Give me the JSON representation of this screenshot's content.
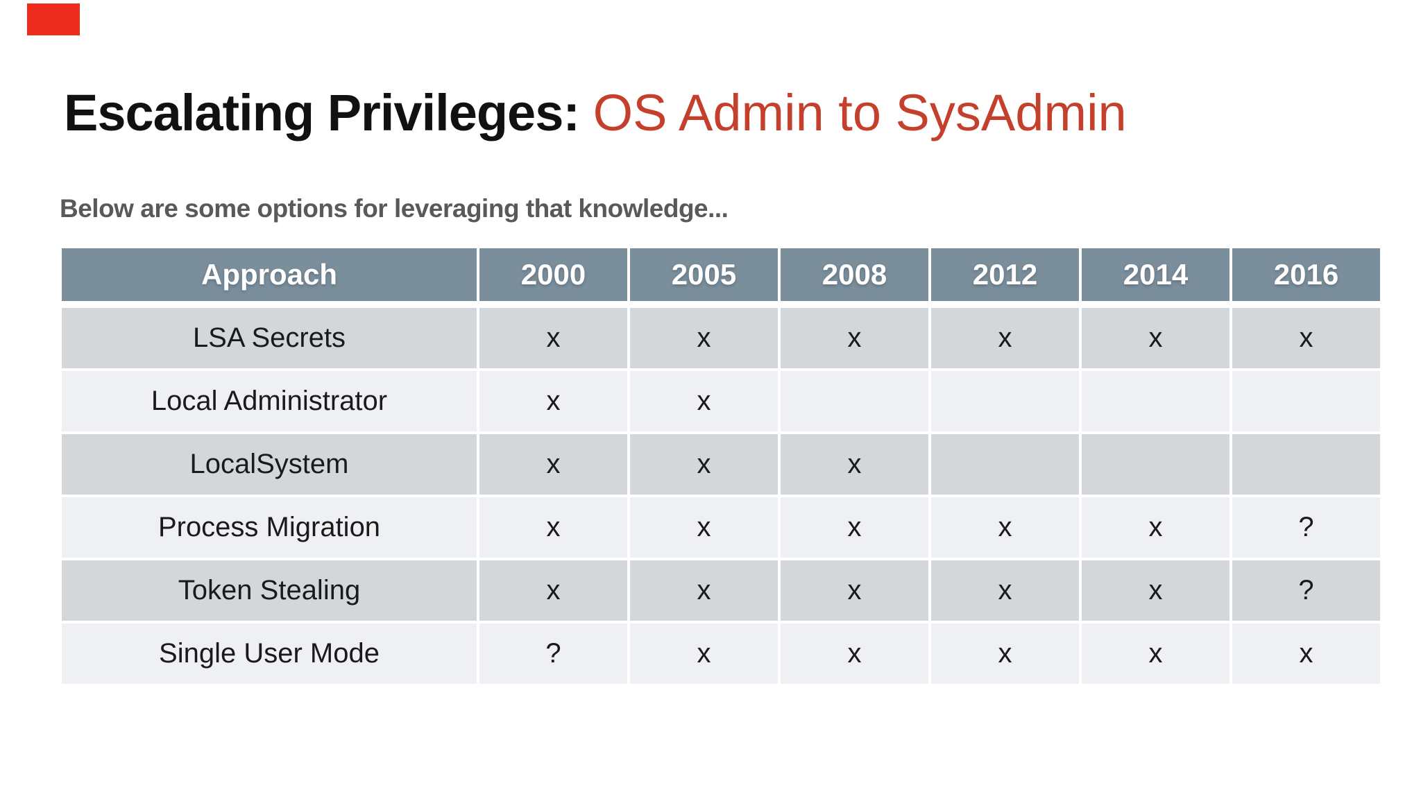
{
  "title": {
    "black": "Escalating Privileges: ",
    "red": "OS Admin to SysAdmin"
  },
  "subtitle": "Below are some options for leveraging that knowledge...",
  "table": {
    "columns": [
      "Approach",
      "2000",
      "2005",
      "2008",
      "2012",
      "2014",
      "2016"
    ],
    "rows": [
      {
        "label": "LSA Secrets",
        "cells": [
          "x",
          "x",
          "x",
          "x",
          "x",
          "x"
        ]
      },
      {
        "label": "Local Administrator",
        "cells": [
          "x",
          "x",
          "",
          "",
          "",
          ""
        ]
      },
      {
        "label": "LocalSystem",
        "cells": [
          "x",
          "x",
          "x",
          "",
          "",
          ""
        ]
      },
      {
        "label": "Process Migration",
        "cells": [
          "x",
          "x",
          "x",
          "x",
          "x",
          "?"
        ]
      },
      {
        "label": "Token Stealing",
        "cells": [
          "x",
          "x",
          "x",
          "x",
          "x",
          "?"
        ]
      },
      {
        "label": "Single User Mode",
        "cells": [
          "?",
          "x",
          "x",
          "x",
          "x",
          "x"
        ]
      }
    ],
    "highlight_cell": {
      "row": 0,
      "col": 1
    }
  },
  "colors": {
    "accent_red": "#c5402c",
    "corner_red": "#ed2c1f",
    "header_bg": "#7b8e9b",
    "row_dark": "#d3d7da",
    "row_light": "#eef0f3",
    "highlight": "#d6dae3",
    "title_black": "#111111",
    "subtitle_gray": "#595959",
    "cell_text": "#1a1a1a",
    "header_text": "#ffffff"
  }
}
